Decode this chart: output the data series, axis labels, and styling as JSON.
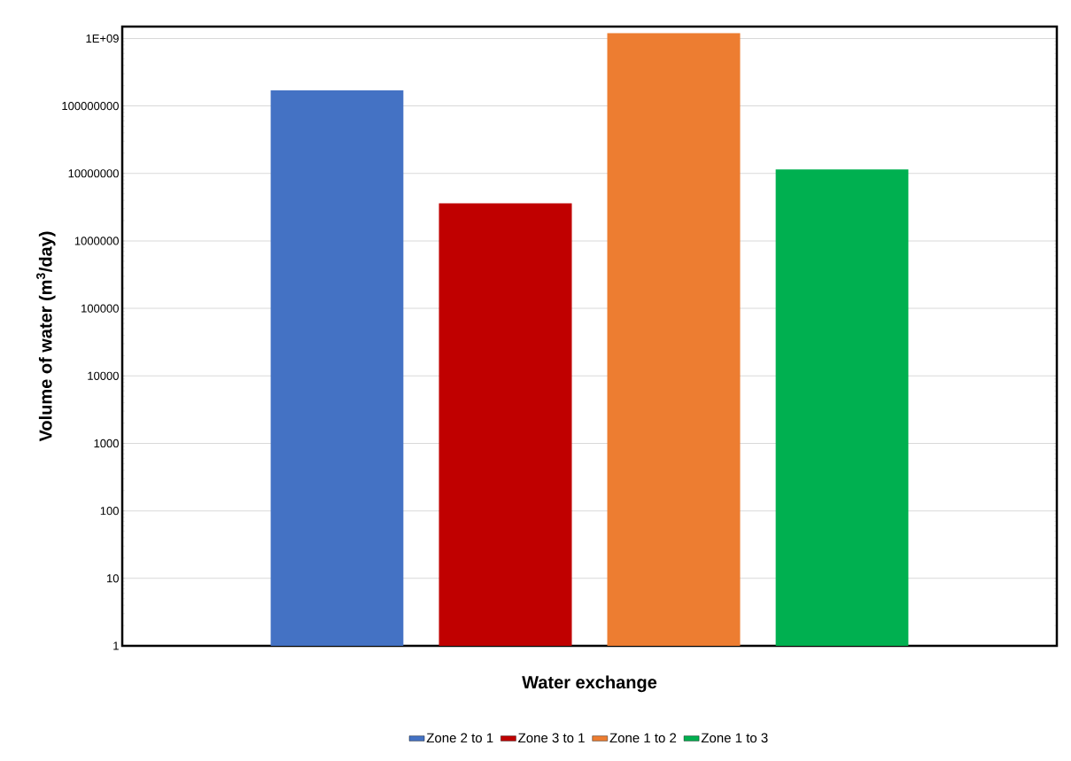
{
  "chart_data": {
    "type": "bar",
    "xlabel": "Water exchange",
    "ylabel": "Volume of water (m$^{3}$/day)",
    "categories": [
      null
    ],
    "series": [
      {
        "name": "Zone 2 to 1",
        "color": "#4472c4",
        "values": [
          170000000
        ]
      },
      {
        "name": "Zone 3 to 1",
        "color": "#c00000",
        "values": [
          3600000
        ]
      },
      {
        "name": "Zone 1 to 2",
        "color": "#ed7d31",
        "values": [
          1200000000
        ]
      },
      {
        "name": "Zone 1 to 3",
        "color": "#00b050",
        "values": [
          11500000
        ]
      }
    ],
    "log": "y",
    "ylim": [
      1,
      1500000000
    ],
    "yticks": [
      1,
      10,
      100,
      1000,
      10000,
      100000,
      1000000,
      10000000,
      100000000,
      {
        "value": 1000000000,
        "label": "1E+09"
      }
    ],
    "grid": "y",
    "legend": "bottom"
  }
}
